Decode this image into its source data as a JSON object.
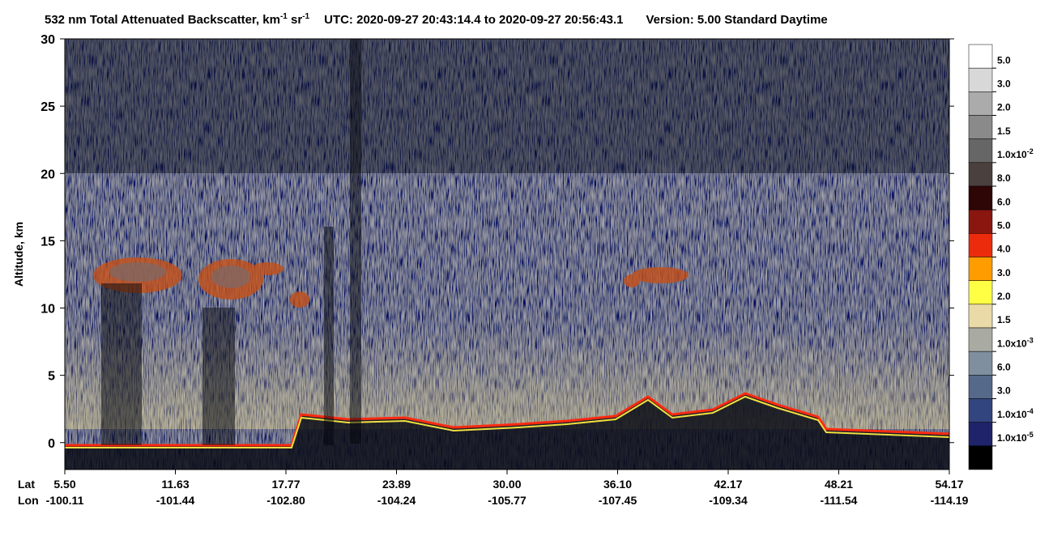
{
  "chart_data": {
    "type": "lidar-profile",
    "title": {
      "prefix": "532 nm Total Attenuated Backscatter, km",
      "sup1": "-1",
      "mid": " sr",
      "sup2": "-1",
      "utc": "UTC:  2020-09-27 20:43:14.4  to  2020-09-27 20:56:43.1",
      "version": "Version: 5.00  Standard  Daytime"
    },
    "y_label": "Altitude, km",
    "ylim": [
      -2,
      30
    ],
    "yticks": [
      0,
      5,
      10,
      15,
      20,
      25,
      30
    ],
    "lat_label": "Lat",
    "lon_label": "Lon",
    "lat": [
      "5.50",
      "11.63",
      "17.77",
      "23.89",
      "30.00",
      "36.10",
      "42.17",
      "48.21",
      "54.17"
    ],
    "lon": [
      "-100.11",
      "-101.44",
      "-102.80",
      "-104.24",
      "-105.77",
      "-107.45",
      "-109.34",
      "-111.54",
      "-114.19"
    ],
    "colorbar": {
      "colors": [
        "#ffffff",
        "#d8d8d8",
        "#ababab",
        "#8a8a8a",
        "#666666",
        "#4a403d",
        "#2e0606",
        "#8a1610",
        "#ec2a0c",
        "#ff9c00",
        "#ffff44",
        "#eadaa8",
        "#a9aba2",
        "#7f8fa0",
        "#55698a",
        "#33457e",
        "#1f236a",
        "#000000"
      ],
      "labels": [
        {
          "text": "5.0"
        },
        {
          "text": "3.0"
        },
        {
          "text": "2.0"
        },
        {
          "text": "1.5"
        },
        {
          "text": "1.0x10",
          "sup": "-2"
        },
        {
          "text": "8.0"
        },
        {
          "text": "6.0"
        },
        {
          "text": "5.0"
        },
        {
          "text": "4.0"
        },
        {
          "text": "3.0"
        },
        {
          "text": "2.0"
        },
        {
          "text": "1.5"
        },
        {
          "text": "1.0x10",
          "sup": "-3"
        },
        {
          "text": "6.0"
        },
        {
          "text": "3.0"
        },
        {
          "text": "1.0x10",
          "sup": "-4"
        },
        {
          "text": "1.0x10",
          "sup": "-5"
        }
      ]
    }
  }
}
